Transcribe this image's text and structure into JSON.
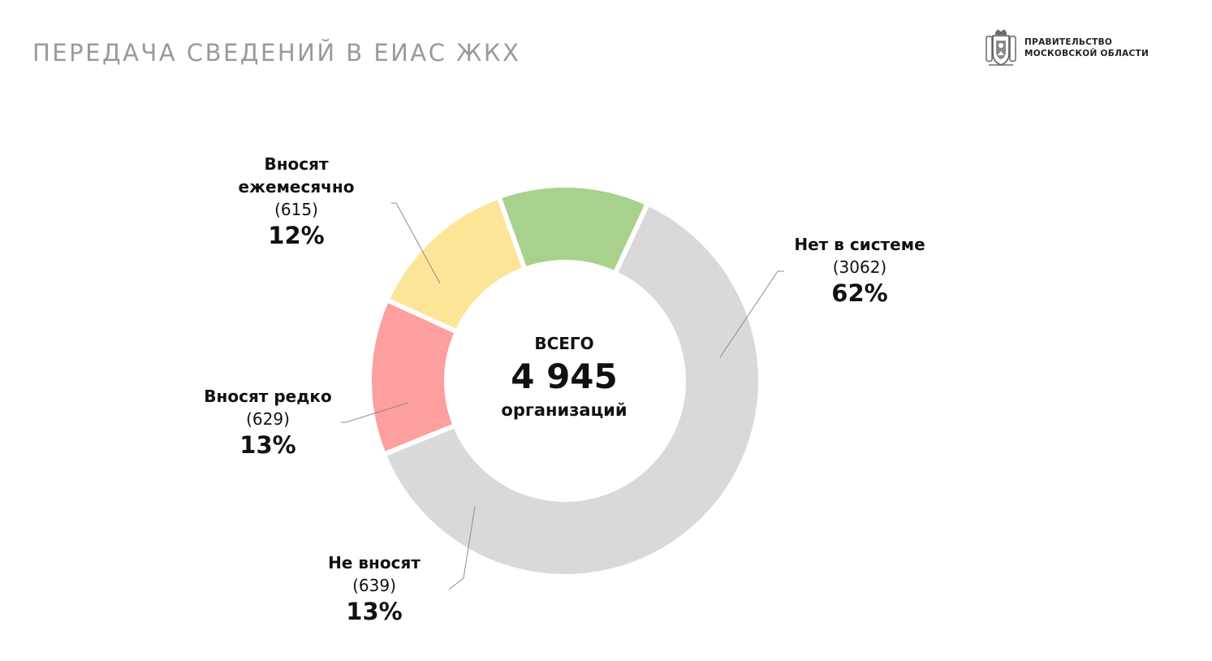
{
  "header": {
    "title": "ПЕРЕДАЧА СВЕДЕНИЙ В ЕИАС ЖКХ",
    "org_line1": "ПРАВИТЕЛЬСТВО",
    "org_line2": "МОСКОВСКОЙ ОБЛАСТИ",
    "emblem_icon": "coat-of-arms-icon"
  },
  "center": {
    "top": "ВСЕГО",
    "total": "4 945",
    "bottom": "организаций"
  },
  "chart_data": {
    "type": "pie",
    "donut": true,
    "total": 4945,
    "slices": [
      {
        "name": "Нет в системе",
        "count_label": "(3062)",
        "value": 3062,
        "percent_label": "62%",
        "percent": 62,
        "color": "#d9d9d9"
      },
      {
        "name": "Не вносят",
        "count_label": "(639)",
        "value": 639,
        "percent_label": "13%",
        "percent": 13,
        "color": "#fd9f9f"
      },
      {
        "name": "Вносят редко",
        "count_label": "(629)",
        "value": 629,
        "percent_label": "13%",
        "percent": 13,
        "color": "#fde598"
      },
      {
        "name": "Вносят ежемесячно",
        "count_label": "(615)",
        "value": 615,
        "percent_label": "12%",
        "percent": 12,
        "color": "#a8d18d"
      }
    ]
  }
}
